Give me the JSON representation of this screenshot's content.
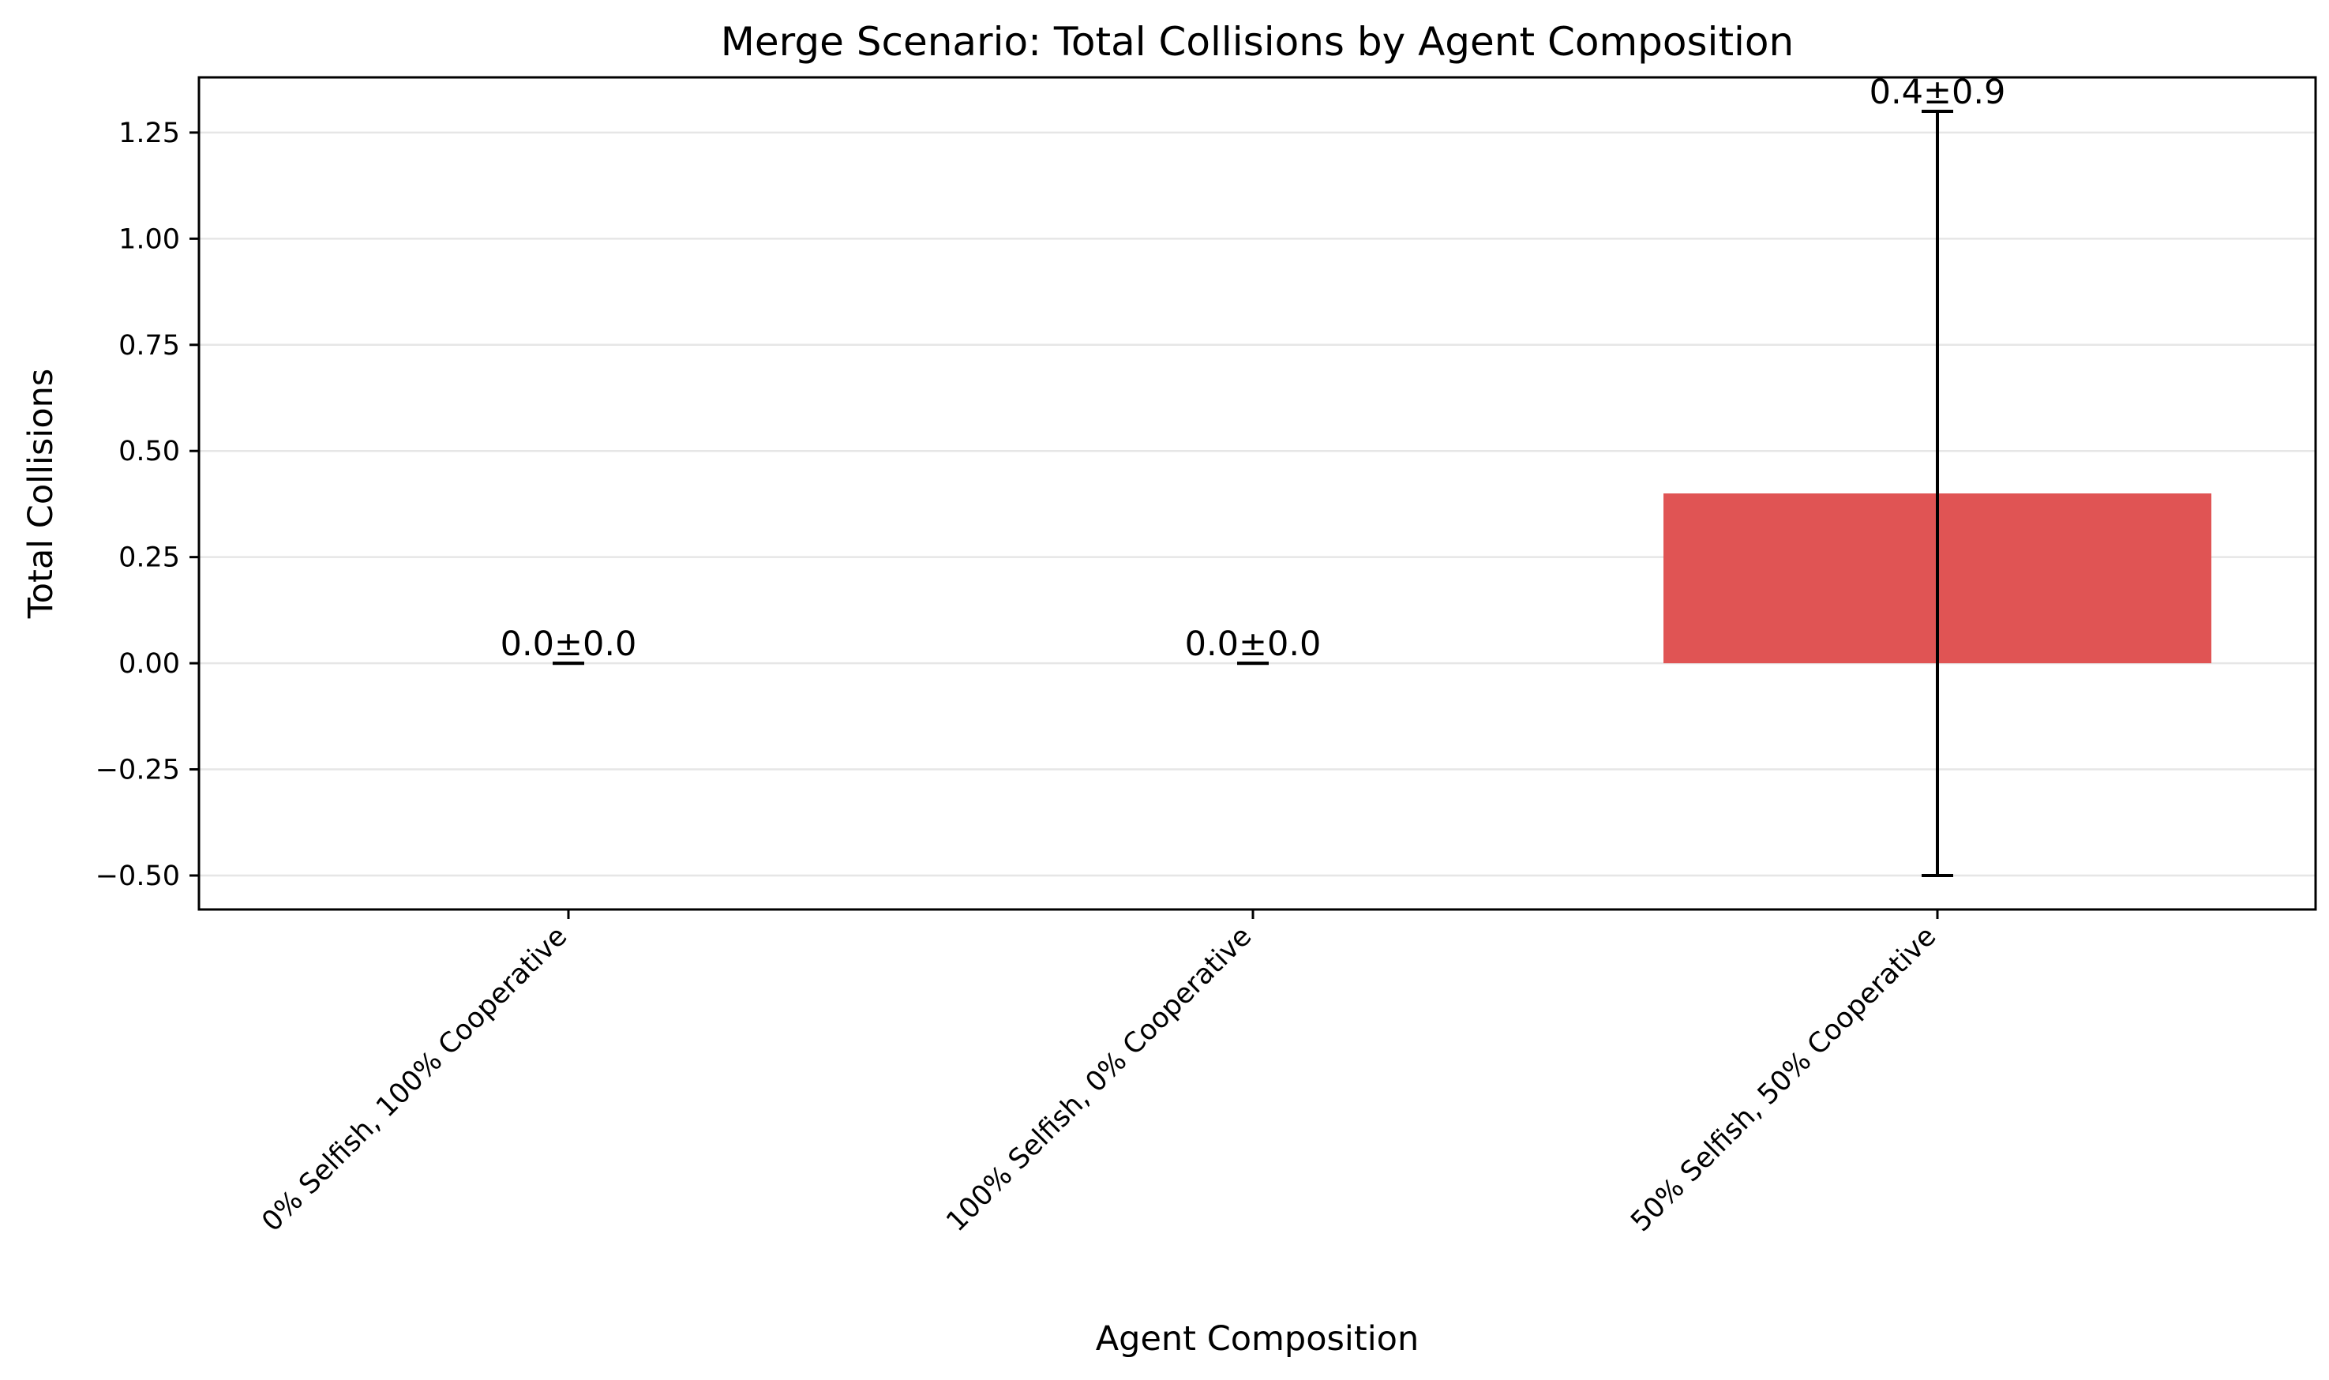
{
  "chart_data": {
    "type": "bar",
    "title": "Merge Scenario: Total Collisions by Agent Composition",
    "xlabel": "Agent Composition",
    "ylabel": "Total Collisions",
    "categories": [
      "0% Selfish, 100% Cooperative",
      "100% Selfish, 0% Cooperative",
      "50% Selfish, 50% Cooperative"
    ],
    "values": [
      0.0,
      0.0,
      0.4
    ],
    "errors": [
      0.0,
      0.0,
      0.9
    ],
    "data_labels": [
      "0.0±0.0",
      "0.0±0.0",
      "0.4±0.9"
    ],
    "ylim": [
      -0.58,
      1.38
    ],
    "yticks": [
      -0.5,
      -0.25,
      0.0,
      0.25,
      0.5,
      0.75,
      1.0,
      1.25
    ],
    "ytick_labels": [
      "−0.50",
      "−0.25",
      "0.00",
      "0.25",
      "0.50",
      "0.75",
      "1.00",
      "1.25"
    ],
    "grid": "y",
    "colors": {
      "bar": "#e05454",
      "grid": "#e6e6e6",
      "axes": "#000000",
      "error": "#000000"
    }
  }
}
